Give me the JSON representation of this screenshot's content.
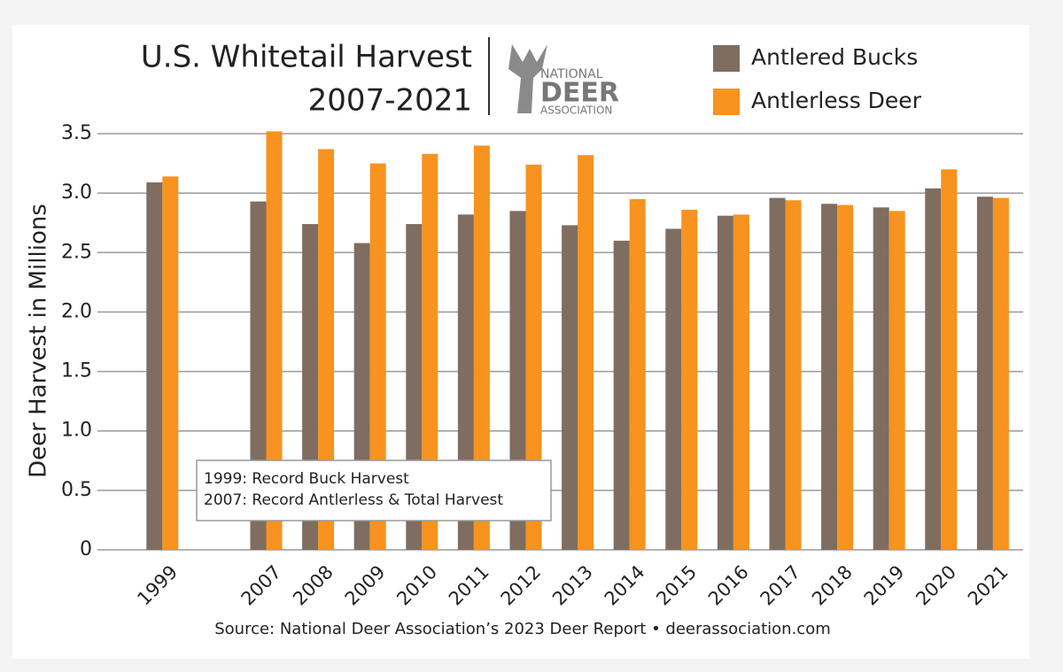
{
  "chart_data": {
    "type": "bar",
    "title": [
      "U.S. Whitetail Harvest",
      "2007-2021"
    ],
    "logo": [
      "NATIONAL",
      "DEER",
      "ASSOCIATION"
    ],
    "y_label": "Deer Harvest in Millions",
    "annotation": [
      "1999: Record Buck Harvest",
      "2007: Record Antlerless & Total Harvest"
    ],
    "source": "Source: National Deer Association’s 2023 Deer Report • deerassociation.com",
    "categories": [
      "1999",
      null,
      "2007",
      "2008",
      "2009",
      "2010",
      "2011",
      "2012",
      "2013",
      "2014",
      "2015",
      "2016",
      "2017",
      "2018",
      "2019",
      "2020",
      "2021"
    ],
    "series": [
      {
        "name": "Antlered Bucks",
        "color": "#7f6d60",
        "values": [
          3.09,
          null,
          2.93,
          2.74,
          2.58,
          2.74,
          2.82,
          2.85,
          2.73,
          2.6,
          2.7,
          2.81,
          2.96,
          2.91,
          2.88,
          3.04,
          2.97
        ]
      },
      {
        "name": "Antlerless Deer",
        "color": "#f7931e",
        "values": [
          3.14,
          null,
          3.52,
          3.37,
          3.25,
          3.33,
          3.4,
          3.24,
          3.32,
          2.95,
          2.86,
          2.82,
          2.94,
          2.9,
          2.85,
          3.2,
          2.96
        ]
      }
    ],
    "ylim": [
      0,
      3.5
    ],
    "yticks": [
      0,
      0.5,
      {
        "value": 1,
        "label": "1.0"
      },
      1.5,
      {
        "value": 2,
        "label": "2.0"
      },
      2.5,
      {
        "value": 3,
        "label": "3.0"
      },
      3.5
    ],
    "grid": true
  }
}
